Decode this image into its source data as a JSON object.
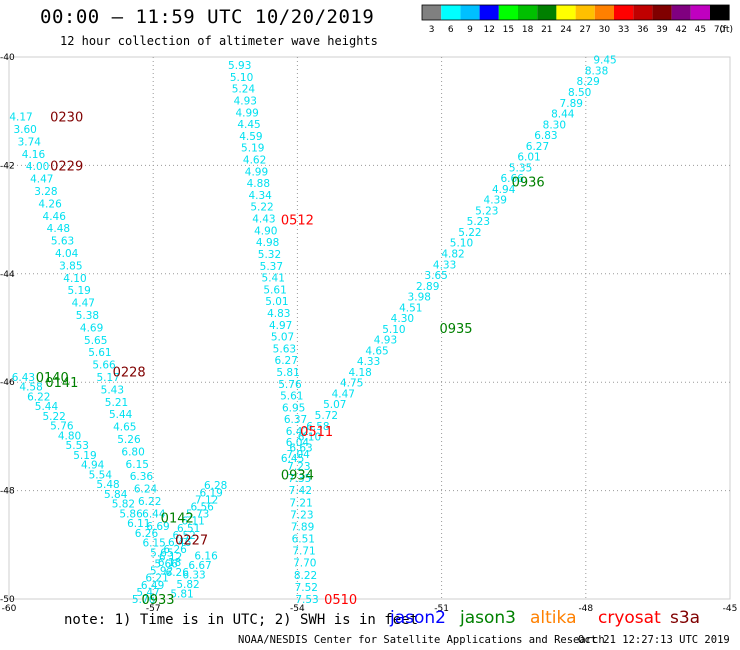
{
  "header": {
    "title": "00:00 – 11:59 UTC 10/20/2019",
    "subtitle": "12 hour collection of altimeter wave heights"
  },
  "legend": {
    "unit": "(ft)",
    "bins": [
      {
        "label": "3",
        "color": "#808080"
      },
      {
        "label": "6",
        "color": "#00ffff"
      },
      {
        "label": "9",
        "color": "#00c0ff"
      },
      {
        "label": "12",
        "color": "#0000ff"
      },
      {
        "label": "15",
        "color": "#00ff00"
      },
      {
        "label": "18",
        "color": "#00c000"
      },
      {
        "label": "21",
        "color": "#008000"
      },
      {
        "label": "24",
        "color": "#ffff00"
      },
      {
        "label": "27",
        "color": "#ffc000"
      },
      {
        "label": "30",
        "color": "#ff8000"
      },
      {
        "label": "33",
        "color": "#ff0000"
      },
      {
        "label": "36",
        "color": "#c00000"
      },
      {
        "label": "39",
        "color": "#800000"
      },
      {
        "label": "42",
        "color": "#800080"
      },
      {
        "label": "45",
        "color": "#c000c0"
      },
      {
        "label": "70",
        "color": "#000000"
      }
    ]
  },
  "footer": {
    "note": "note: 1) Time is in UTC; 2) SWH is in feet",
    "satellites": [
      {
        "name": "jason2",
        "color": "#0000ff"
      },
      {
        "name": "jason3",
        "color": "#008000"
      },
      {
        "name": "altika",
        "color": "#ff8000"
      },
      {
        "name": "cryosat",
        "color": "#ff0000"
      },
      {
        "name": "s3a",
        "color": "#800000"
      }
    ],
    "credits": "NOAA/NESDIS Center for Satellite Applications and Research",
    "timestamp": "Oct 21 12:27:13 UTC 2019"
  },
  "chart_data": {
    "type": "scatter",
    "title": "00:00 – 11:59 UTC 10/20/2019",
    "subtitle": "12 hour collection of altimeter wave heights",
    "xlim": [
      -60,
      -45
    ],
    "ylim": [
      -50,
      -40
    ],
    "x_ticks": [
      "-60",
      "-57",
      "-54",
      "-51",
      "-48",
      "-45"
    ],
    "y_ticks": [
      "-40",
      "-42",
      "-44",
      "-46",
      "-48",
      "-50"
    ],
    "x_tick_values": [
      -60,
      -57,
      -54,
      -51,
      -48,
      -45
    ],
    "y_tick_values": [
      -40,
      -42,
      -44,
      -46,
      -48,
      -50
    ],
    "grid": true,
    "pass_labels": [
      {
        "text": "0230",
        "x": -58.8,
        "y": -41.1,
        "color": "#800000"
      },
      {
        "text": "0229",
        "x": -58.8,
        "y": -42.0,
        "color": "#800000"
      },
      {
        "text": "0228",
        "x": -57.5,
        "y": -45.8,
        "color": "#800000"
      },
      {
        "text": "0140",
        "x": -59.1,
        "y": -45.9,
        "color": "#008000"
      },
      {
        "text": "0141",
        "x": -58.9,
        "y": -46.0,
        "color": "#008000"
      },
      {
        "text": "0142",
        "x": -56.5,
        "y": -48.5,
        "color": "#008000"
      },
      {
        "text": "0227",
        "x": -56.2,
        "y": -48.9,
        "color": "#800000"
      },
      {
        "text": "0933",
        "x": -56.9,
        "y": -50.0,
        "color": "#008000"
      },
      {
        "text": "0512",
        "x": -54.0,
        "y": -43.0,
        "color": "#ff0000"
      },
      {
        "text": "0511",
        "x": -53.6,
        "y": -46.9,
        "color": "#ff0000"
      },
      {
        "text": "0934",
        "x": -54.0,
        "y": -47.7,
        "color": "#008000"
      },
      {
        "text": "0510",
        "x": -53.1,
        "y": -50.0,
        "color": "#ff0000"
      },
      {
        "text": "0936",
        "x": -49.2,
        "y": -42.3,
        "color": "#008000"
      },
      {
        "text": "0935",
        "x": -50.7,
        "y": -45.0,
        "color": "#008000"
      }
    ],
    "tracks": [
      {
        "name": "track-1",
        "color": "#00e0f0",
        "x0": -59.75,
        "y0": -41.1,
        "x1": -56.9,
        "y1": -48.65,
        "values": [
          "4.17",
          "3.60",
          "3.74",
          "4.16",
          "4.00",
          "4.47",
          "3.28",
          "4.26",
          "4.46",
          "4.48",
          "5.63",
          "4.04",
          "3.85",
          "4.10",
          "5.19",
          "4.47",
          "5.38",
          "4.69",
          "5.65",
          "5.61",
          "5.66",
          "5.17",
          "5.43",
          "5.21",
          "5.44",
          "4.65",
          "5.26",
          "6.80",
          "6.15",
          "6.36",
          "6.24",
          "6.22",
          "6.44",
          "6.69"
        ]
      },
      {
        "name": "track-2",
        "color": "#00e0f0",
        "x0": -59.7,
        "y0": -45.9,
        "x1": -56.5,
        "y1": -49.5,
        "values": [
          "6.43",
          "4.58",
          "6.22",
          "5.44",
          "5.22",
          "5.76",
          "4.80",
          "5.53",
          "5.19",
          "4.94",
          "5.54",
          "5.48",
          "5.84",
          "5.82",
          "5.86",
          "6.11",
          "6.26",
          "6.15",
          "5.65",
          "6.18",
          "6.26"
        ]
      },
      {
        "name": "track-3",
        "color": "#00e0f0",
        "x0": -57.2,
        "y0": -50.0,
        "x1": -55.7,
        "y1": -47.9,
        "values": [
          "5.76",
          "5.47",
          "6.49",
          "6.21",
          "5.92",
          "5.66",
          "6.12",
          "6.26",
          "6.46",
          "6.52",
          "6.51",
          "6.11",
          "5.73",
          "6.56",
          "7.12",
          "6.19",
          "6.28"
        ]
      },
      {
        "name": "track-4",
        "color": "#00e0f0",
        "x0": -56.4,
        "y0": -49.9,
        "x1": -55.9,
        "y1": -49.2,
        "values": [
          "5.81",
          "5.82",
          "6.33",
          "6.67",
          "6.16"
        ]
      },
      {
        "name": "track-5",
        "color": "#00e0f0",
        "x0": -55.2,
        "y0": -40.15,
        "x1": -54.0,
        "y1": -46.9,
        "values": [
          "5.93",
          "5.10",
          "5.24",
          "4.93",
          "4.99",
          "4.45",
          "4.59",
          "5.19",
          "4.62",
          "4.99",
          "4.88",
          "4.34",
          "5.22",
          "4.43",
          "4.90",
          "4.98",
          "5.32",
          "5.37",
          "5.41",
          "5.61",
          "5.01",
          "4.83",
          "4.97",
          "5.07",
          "5.63",
          "6.27",
          "5.81",
          "5.76",
          "5.61",
          "6.95",
          "6.37",
          "6.42"
        ]
      },
      {
        "name": "track-6",
        "color": "#00e0f0",
        "x0": -54.0,
        "y0": -47.1,
        "x1": -53.8,
        "y1": -50.0,
        "values": [
          "6.04",
          "7.04",
          "7.23",
          "7.35",
          "7.42",
          "7.21",
          "7.23",
          "7.89",
          "6.51",
          "7.71",
          "7.70",
          "8.22",
          "7.52",
          "7.53"
        ]
      },
      {
        "name": "track-7",
        "color": "#00e0f0",
        "x0": -54.1,
        "y0": -47.4,
        "x1": -47.6,
        "y1": -40.05,
        "values": [
          "6.45",
          "6.63",
          "6.10",
          "6.58",
          "5.72",
          "5.07",
          "4.47",
          "4.75",
          "4.18",
          "4.33",
          "4.65",
          "4.93",
          "5.10",
          "4.30",
          "4.51",
          "3.98",
          "2.89",
          "3.65",
          "4.33",
          "4.82",
          "5.10",
          "5.22",
          "5.23",
          "5.23",
          "4.39",
          "4.94",
          "6.66",
          "5.35",
          "6.01",
          "6.27",
          "6.83",
          "8.30",
          "8.44",
          "7.89",
          "8.50",
          "8.29",
          "8.38",
          "9.45"
        ]
      }
    ]
  }
}
